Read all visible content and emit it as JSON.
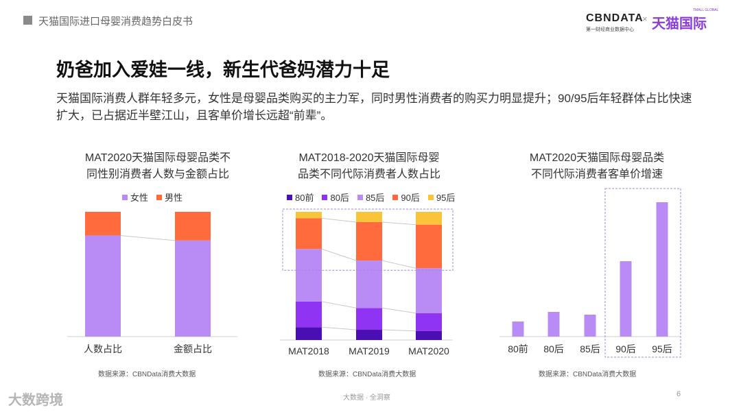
{
  "header": {
    "report_title": "天猫国际进口母婴消费趋势白皮书"
  },
  "logos": {
    "cbn": "CBNDATA",
    "cbn_sub": "第一财经商业数据中心",
    "times": "×",
    "tmall": "天猫国际",
    "tmall_sub": "TMALL GLOBAL"
  },
  "page": {
    "title": "奶爸加入爱娃一线，新生代爸妈潜力十足",
    "description": "天猫国际消费人群年轻多元，女性是母婴品类购买的主力军，同时男性消费者的购买力明显提升；90/95后年轻群体占比快速扩大，已占据近半壁江山，且客单价增长远超“前辈”。"
  },
  "colors": {
    "female": "#b98cf5",
    "male": "#ff6b3d",
    "pre80": "#4a0fb3",
    "post80": "#8f34f2",
    "post85": "#b98cf5",
    "post90": "#ff6b3d",
    "post95": "#f7c43a",
    "growth": "#b98cf5",
    "highlight_border": "#a184d6"
  },
  "chart_data": [
    {
      "type": "bar",
      "stacked": true,
      "normalized": true,
      "title_lines": [
        "MAT2020天猫国际母婴品类不",
        "同性别消费者人数与金额占比"
      ],
      "categories": [
        "人数占比",
        "金额占比"
      ],
      "series": [
        {
          "name": "女性",
          "values": [
            0.81,
            0.77
          ]
        },
        {
          "name": "男性",
          "values": [
            0.19,
            0.23
          ]
        }
      ],
      "legend": "top",
      "source": "数据来源：CBNData消费大数据"
    },
    {
      "type": "bar",
      "stacked": true,
      "normalized": true,
      "title_lines": [
        "MAT2018-2020天猫国际母婴",
        "品类不同代际消费者人数占比"
      ],
      "categories": [
        "MAT2018",
        "MAT2019",
        "MAT2020"
      ],
      "series": [
        {
          "name": "80前",
          "values": [
            0.1,
            0.08,
            0.07
          ]
        },
        {
          "name": "80后",
          "values": [
            0.2,
            0.17,
            0.14
          ]
        },
        {
          "name": "85后",
          "values": [
            0.41,
            0.37,
            0.35
          ]
        },
        {
          "name": "90后",
          "values": [
            0.24,
            0.3,
            0.34
          ]
        },
        {
          "name": "95后",
          "values": [
            0.05,
            0.08,
            0.1
          ]
        }
      ],
      "legend": "top",
      "source": "数据来源：CBNData消费大数据"
    },
    {
      "type": "bar",
      "title_lines": [
        "MAT2020天猫国际母婴品类",
        "不同代际消费者客单价增速"
      ],
      "categories": [
        "80前",
        "80后",
        "85后",
        "90后",
        "95后"
      ],
      "values": [
        0.11,
        0.18,
        0.16,
        0.55,
        0.98
      ],
      "highlight": [
        "90后",
        "95后"
      ],
      "source": "数据来源：CBNData消费大数据"
    }
  ],
  "footer": {
    "center": "大数据 · 全洞察",
    "page_number": "6",
    "watermark": "大数跨境"
  }
}
